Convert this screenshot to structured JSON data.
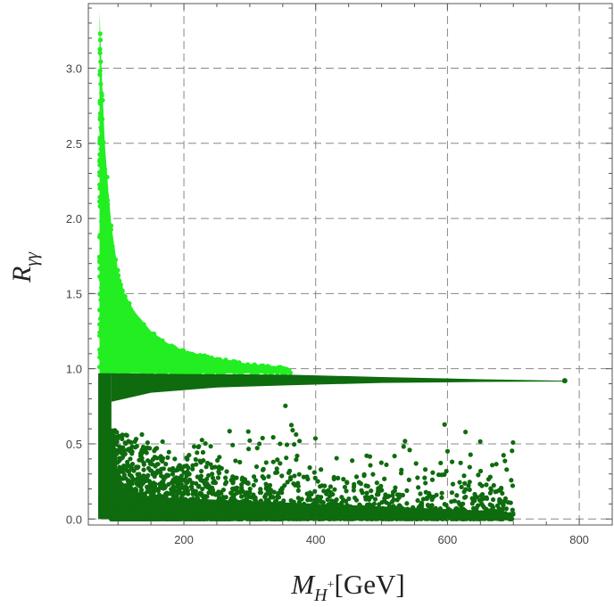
{
  "chart_data": {
    "type": "scatter",
    "title": "",
    "xlabel": {
      "main": "M",
      "subscript": "H",
      "superscript": "+",
      "unit": "[GeV]"
    },
    "ylabel": {
      "main": "R",
      "subscript": "γγ"
    },
    "xlim": [
      55,
      850
    ],
    "ylim": [
      -0.04,
      3.43
    ],
    "xticks": [
      200,
      400,
      600,
      800
    ],
    "yticks": [
      0.0,
      0.5,
      1.0,
      1.5,
      2.0,
      2.5,
      3.0
    ],
    "grid": true,
    "grid_style": "dashed",
    "legend": "none",
    "series": [
      {
        "color": "#22ee22",
        "description": "upper light-green band, R above ~0.97",
        "envelope_upper": [
          [
            72,
            3.38
          ],
          [
            75,
            3.0
          ],
          [
            80,
            2.5
          ],
          [
            85,
            2.2
          ],
          [
            90,
            1.95
          ],
          [
            100,
            1.65
          ],
          [
            110,
            1.5
          ],
          [
            125,
            1.38
          ],
          [
            150,
            1.25
          ],
          [
            175,
            1.17
          ],
          [
            200,
            1.12
          ],
          [
            250,
            1.07
          ],
          [
            300,
            1.03
          ],
          [
            350,
            1.01
          ],
          [
            360,
            0.99
          ]
        ],
        "envelope_lower": 0.97
      },
      {
        "color": "#0e6b0e",
        "description": "dense dark-green band, R from 0 to ~0.97 plus narrow tail",
        "dense_band": [
          [
            70,
            0.0
          ],
          [
            90,
            0.97
          ]
        ],
        "tail_upper": [
          [
            90,
            0.97
          ],
          [
            200,
            0.965
          ],
          [
            360,
            0.96
          ],
          [
            500,
            0.945
          ],
          [
            650,
            0.93
          ],
          [
            778,
            0.92
          ]
        ],
        "tail_lower": [
          [
            90,
            0.78
          ],
          [
            150,
            0.84
          ],
          [
            250,
            0.875
          ],
          [
            360,
            0.89
          ],
          [
            500,
            0.905
          ],
          [
            650,
            0.912
          ],
          [
            778,
            0.915
          ]
        ],
        "tail_end": [
          778,
          0.92
        ],
        "bottom_band": [
          [
            70,
            0.0
          ],
          [
            690,
            0.05
          ]
        ],
        "scatter_xmax": 700
      }
    ]
  }
}
